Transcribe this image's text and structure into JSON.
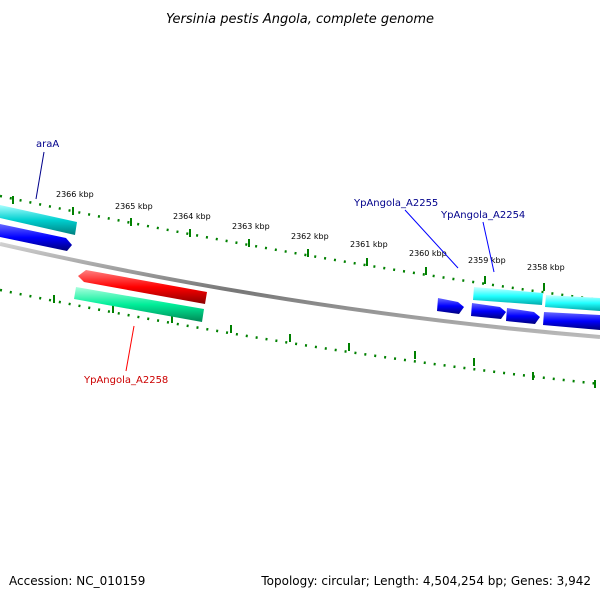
{
  "title": "Yersinia pestis Angola, complete genome",
  "footer": {
    "accession": "Accession: NC_010159",
    "topology": "Topology: circular; Length: 4,504,254 bp; Genes: 3,942"
  },
  "ruler": {
    "ticks": [
      "2366 kbp",
      "2365 kbp",
      "2364 kbp",
      "2363 kbp",
      "2362 kbp",
      "2361 kbp",
      "2360 kbp",
      "2359 kbp",
      "2358 kbp"
    ]
  },
  "gene_labels": [
    {
      "id": "araA",
      "text": "araA",
      "color": "#00008b"
    },
    {
      "id": "YpAngola_A2255",
      "text": "YpAngola_A2255",
      "color": "#00008b"
    },
    {
      "id": "YpAngola_A2254",
      "text": "YpAngola_A2254",
      "color": "#00008b"
    },
    {
      "id": "YpAngola_A2258",
      "text": "YpAngola_A2258",
      "color": "#cc0000"
    }
  ],
  "colors": {
    "forward_cds": "#0000ff",
    "tRNA_like_cyan": "#00cccc",
    "reverse_cds": "#ff0000",
    "green_feature": "#00dd88",
    "backbone": "#808080",
    "ticks": "#008000"
  }
}
